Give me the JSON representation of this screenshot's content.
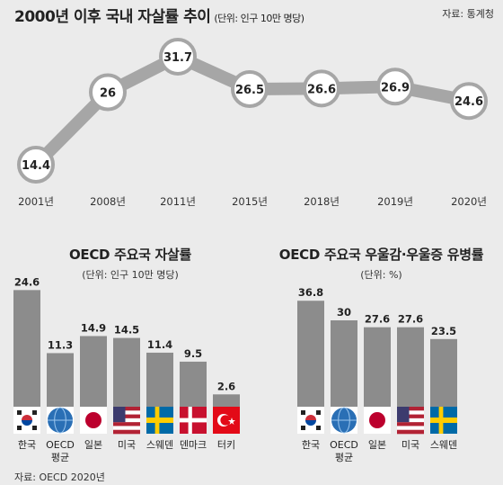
{
  "header": {
    "title": "2000년 이후 국내 자살률 추이",
    "unit": "(단위: 인구 10만 명당)",
    "source": "자료: 통계청"
  },
  "colors": {
    "background": "#ebebeb",
    "line": "#a6a6a6",
    "bar": "#8c8c8c",
    "text": "#222222"
  },
  "chart_data": [
    {
      "type": "line",
      "title": "2000년 이후 국내 자살률 추이",
      "unit": "(단위: 인구 10만 명당)",
      "categories": [
        "2001년",
        "2008년",
        "2011년",
        "2015년",
        "2018년",
        "2019년",
        "2020년"
      ],
      "values": [
        14.4,
        26,
        31.7,
        26.5,
        26.6,
        26.9,
        24.6
      ],
      "value_labels": [
        "14.4",
        "26",
        "31.7",
        "26.5",
        "26.6",
        "26.9",
        "24.6"
      ],
      "grid": false,
      "source": "자료: 통계청"
    },
    {
      "type": "bar",
      "title": "OECD 주요국 자살률",
      "unit": "(단위: 인구 10만 명당)",
      "categories": [
        "한국",
        "OECD 평균",
        "일본",
        "미국",
        "스웨덴",
        "덴마크",
        "터키"
      ],
      "values": [
        24.6,
        11.3,
        14.9,
        14.5,
        11.4,
        9.5,
        2.6
      ],
      "value_labels": [
        "24.6",
        "11.3",
        "14.9",
        "14.5",
        "11.4",
        "9.5",
        "2.6"
      ],
      "flags": [
        "korea-flag",
        "oecd-globe",
        "japan-flag",
        "usa-flag",
        "sweden-flag",
        "denmark-flag",
        "turkey-flag"
      ],
      "source": "자료: OECD 2020년"
    },
    {
      "type": "bar",
      "title": "OECD 주요국 우울감·우울증 유병률",
      "unit": "(단위: %)",
      "categories": [
        "한국",
        "OECD 평균",
        "일본",
        "미국",
        "스웨덴"
      ],
      "values": [
        36.8,
        30,
        27.6,
        27.6,
        23.5
      ],
      "value_labels": [
        "36.8",
        "30",
        "27.6",
        "27.6",
        "23.5"
      ],
      "flags": [
        "korea-flag",
        "oecd-globe",
        "japan-flag",
        "usa-flag",
        "sweden-flag"
      ]
    }
  ]
}
